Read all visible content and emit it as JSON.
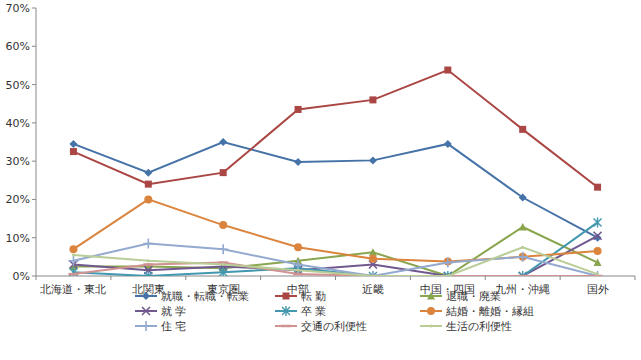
{
  "chart_data": {
    "type": "line",
    "categories": [
      "北海道・東北",
      "北関東",
      "東京圏",
      "中部",
      "近畿",
      "中国・四国",
      "九州・沖縄",
      "国外"
    ],
    "ylim": [
      0,
      70
    ],
    "yticks": [
      {
        "value": 0,
        "label": "0%"
      },
      {
        "value": 10,
        "label": "10%"
      },
      {
        "value": 20,
        "label": "20%"
      },
      {
        "value": 30,
        "label": "30%"
      },
      {
        "value": 40,
        "label": "40%"
      },
      {
        "value": 50,
        "label": "50%"
      },
      {
        "value": 60,
        "label": "60%"
      },
      {
        "value": 70,
        "label": "70%"
      }
    ],
    "grid": false,
    "legend": "bottom",
    "series": [
      {
        "name": "就職・転職・転業",
        "color": "#4572A7",
        "marker": "diamond",
        "values": [
          34.5,
          27,
          35,
          29.8,
          30.2,
          34.5,
          20.5,
          10
        ]
      },
      {
        "name": "転 勤",
        "color": "#AA4643",
        "marker": "square",
        "values": [
          32.5,
          24,
          27,
          43.5,
          46,
          53.8,
          38.3,
          23.2
        ]
      },
      {
        "name": "退職・廃業",
        "color": "#89A54E",
        "marker": "triangle",
        "values": [
          2.5,
          2.5,
          2,
          4,
          6.2,
          0,
          12.8,
          3.5
        ]
      },
      {
        "name": "就 学",
        "color": "#71588F",
        "marker": "x",
        "values": [
          3,
          1.5,
          2.5,
          1.5,
          3,
          0,
          0,
          10.5
        ]
      },
      {
        "name": "卒 業",
        "color": "#4198AF",
        "marker": "star",
        "values": [
          1,
          0,
          1,
          2,
          0,
          0,
          0,
          14
        ]
      },
      {
        "name": "結婚・離婚・縁組",
        "color": "#DB843D",
        "marker": "circle",
        "values": [
          7,
          20,
          13.3,
          7.5,
          4.5,
          3.8,
          5,
          6.5
        ]
      },
      {
        "name": "住 宅",
        "color": "#93A9CF",
        "marker": "plus",
        "values": [
          4,
          8.5,
          7,
          3,
          0,
          3.5,
          5,
          0
        ]
      },
      {
        "name": "交通の利便性",
        "color": "#D19392",
        "marker": "dash",
        "values": [
          0.5,
          3,
          3.5,
          0.5,
          0,
          0,
          0,
          0
        ]
      },
      {
        "name": "生活の利便性",
        "color": "#B9CD96",
        "marker": "none",
        "values": [
          5.5,
          4,
          3,
          1.5,
          0,
          0,
          7.5,
          0.5
        ]
      }
    ]
  }
}
